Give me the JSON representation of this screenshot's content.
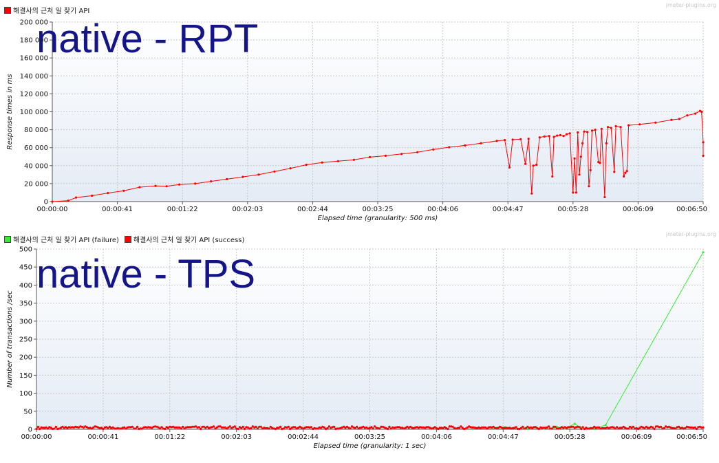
{
  "watermark": "jmeter-plugins.org",
  "chart_data": [
    {
      "type": "line",
      "overlay_text": "native - RPT",
      "xlabel": "Elapsed time (granularity: 500 ms)",
      "ylabel": "Response times in ms",
      "x_ticks": [
        "00:00:00",
        "00:00:41",
        "00:01:22",
        "00:02:03",
        "00:02:44",
        "00:03:25",
        "00:04:06",
        "00:04:47",
        "00:05:28",
        "00:06:09",
        "00:06:50"
      ],
      "y_ticks": [
        "0",
        "20 000",
        "40 000",
        "60 000",
        "80 000",
        "100 000",
        "120 000",
        "140 000",
        "160 000",
        "180 000",
        "200 000"
      ],
      "xlim": [
        0,
        410
      ],
      "ylim": [
        0,
        200000
      ],
      "grid": true,
      "legend_position": "top-left",
      "series": [
        {
          "name": "해결사의 근처 일 찾기 API",
          "color": "#ff0000",
          "points": [
            [
              0,
              0
            ],
            [
              10,
              1000
            ],
            [
              15,
              4500
            ],
            [
              25,
              6500
            ],
            [
              35,
              9500
            ],
            [
              45,
              12000
            ],
            [
              55,
              16000
            ],
            [
              65,
              17500
            ],
            [
              72,
              17000
            ],
            [
              80,
              19000
            ],
            [
              90,
              20000
            ],
            [
              100,
              22500
            ],
            [
              110,
              25000
            ],
            [
              120,
              27500
            ],
            [
              130,
              30000
            ],
            [
              140,
              33500
            ],
            [
              150,
              37000
            ],
            [
              160,
              41000
            ],
            [
              170,
              43500
            ],
            [
              180,
              45000
            ],
            [
              190,
              46500
            ],
            [
              200,
              49500
            ],
            [
              210,
              51000
            ],
            [
              220,
              53000
            ],
            [
              230,
              55000
            ],
            [
              240,
              58000
            ],
            [
              250,
              60500
            ],
            [
              260,
              62500
            ],
            [
              270,
              65000
            ],
            [
              280,
              67500
            ],
            [
              285,
              68500
            ],
            [
              288,
              38000
            ],
            [
              290,
              69000
            ],
            [
              295,
              69500
            ],
            [
              298,
              42000
            ],
            [
              300,
              70000
            ],
            [
              302,
              9000
            ],
            [
              303,
              40000
            ],
            [
              305,
              41000
            ],
            [
              307,
              71500
            ],
            [
              310,
              72500
            ],
            [
              313,
              73000
            ],
            [
              315,
              28000
            ],
            [
              316,
              72000
            ],
            [
              318,
              73500
            ],
            [
              320,
              74000
            ],
            [
              322,
              73000
            ],
            [
              324,
              75000
            ],
            [
              326,
              76000
            ],
            [
              328,
              10000
            ],
            [
              329,
              48000
            ],
            [
              330,
              10000
            ],
            [
              331,
              77000
            ],
            [
              332,
              30000
            ],
            [
              333,
              50000
            ],
            [
              334,
              65000
            ],
            [
              335,
              78000
            ],
            [
              337,
              77500
            ],
            [
              338,
              17000
            ],
            [
              339,
              35000
            ],
            [
              340,
              79000
            ],
            [
              342,
              80000
            ],
            [
              344,
              44000
            ],
            [
              345,
              43000
            ],
            [
              346,
              81000
            ],
            [
              348,
              5000
            ],
            [
              349,
              65000
            ],
            [
              350,
              83000
            ],
            [
              352,
              82000
            ],
            [
              354,
              33000
            ],
            [
              355,
              84000
            ],
            [
              358,
              83000
            ],
            [
              360,
              28000
            ],
            [
              361,
              32000
            ],
            [
              362,
              34000
            ],
            [
              363,
              85000
            ],
            [
              370,
              86000
            ],
            [
              380,
              88000
            ],
            [
              390,
              91000
            ],
            [
              395,
              92000
            ],
            [
              400,
              96000
            ],
            [
              405,
              98000
            ],
            [
              408,
              101000
            ],
            [
              409,
              100000
            ],
            [
              410,
              66000
            ],
            [
              410,
              51000
            ]
          ]
        }
      ]
    },
    {
      "type": "line",
      "overlay_text": "native - TPS",
      "xlabel": "Elapsed time (granularity: 1 sec)",
      "ylabel": "Number of transactions /sec",
      "x_ticks": [
        "00:00:00",
        "00:00:41",
        "00:01:22",
        "00:02:03",
        "00:02:44",
        "00:03:25",
        "00:04:06",
        "00:04:47",
        "00:05:28",
        "00:06:09",
        "00:06:50"
      ],
      "y_ticks": [
        "0",
        "50",
        "100",
        "150",
        "200",
        "250",
        "300",
        "350",
        "400",
        "450",
        "500"
      ],
      "xlim": [
        0,
        410
      ],
      "ylim": [
        0,
        500
      ],
      "grid": true,
      "legend_position": "top-left",
      "series": [
        {
          "name": "해결사의 근처 일 찾기 API (failure)",
          "color": "#33ee33",
          "points": [
            [
              268,
              1
            ],
            [
              278,
              4
            ],
            [
              282,
              2
            ],
            [
              288,
              6
            ],
            [
              295,
              3
            ],
            [
              302,
              1
            ],
            [
              305,
              5
            ],
            [
              312,
              2
            ],
            [
              318,
              3
            ],
            [
              320,
              7
            ],
            [
              325,
              2
            ],
            [
              331,
              15
            ],
            [
              335,
              4
            ],
            [
              340,
              2
            ],
            [
              343,
              1
            ],
            [
              350,
              12
            ],
            [
              410,
              491
            ]
          ]
        },
        {
          "name": "해결사의 근처 일 찾기 API (success)",
          "color": "#ff0000",
          "points": "noise",
          "noise_range": [
            1,
            8
          ]
        }
      ]
    }
  ]
}
